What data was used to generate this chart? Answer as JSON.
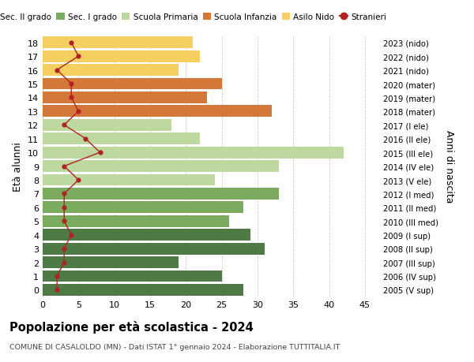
{
  "ages": [
    18,
    17,
    16,
    15,
    14,
    13,
    12,
    11,
    10,
    9,
    8,
    7,
    6,
    5,
    4,
    3,
    2,
    1,
    0
  ],
  "years": [
    "2005 (V sup)",
    "2006 (IV sup)",
    "2007 (III sup)",
    "2008 (II sup)",
    "2009 (I sup)",
    "2010 (III med)",
    "2011 (II med)",
    "2012 (I med)",
    "2013 (V ele)",
    "2014 (IV ele)",
    "2015 (III ele)",
    "2016 (II ele)",
    "2017 (I ele)",
    "2018 (mater)",
    "2019 (mater)",
    "2020 (mater)",
    "2021 (nido)",
    "2022 (nido)",
    "2023 (nido)"
  ],
  "bar_values": [
    28,
    25,
    19,
    31,
    29,
    26,
    28,
    33,
    24,
    33,
    42,
    22,
    18,
    32,
    23,
    25,
    19,
    22,
    21
  ],
  "bar_colors": [
    "#4d7a45",
    "#4d7a45",
    "#4d7a45",
    "#4d7a45",
    "#4d7a45",
    "#7aab5e",
    "#7aab5e",
    "#7aab5e",
    "#bdd9a0",
    "#bdd9a0",
    "#bdd9a0",
    "#bdd9a0",
    "#bdd9a0",
    "#d4783a",
    "#d4783a",
    "#d4783a",
    "#f5d060",
    "#f5d060",
    "#f5d060"
  ],
  "stranieri_values": [
    2,
    2,
    3,
    3,
    4,
    3,
    3,
    3,
    5,
    3,
    8,
    6,
    3,
    5,
    4,
    4,
    2,
    5,
    4
  ],
  "stranieri_color": "#b22222",
  "legend_labels": [
    "Sec. II grado",
    "Sec. I grado",
    "Scuola Primaria",
    "Scuola Infanzia",
    "Asilo Nido",
    "Stranieri"
  ],
  "legend_colors": [
    "#4d7a45",
    "#7aab5e",
    "#bdd9a0",
    "#d4783a",
    "#f5d060",
    "#b22222"
  ],
  "ylabel_left": "Età alunni",
  "ylabel_right": "Anni di nascita",
  "title": "Popolazione per età scolastica - 2024",
  "subtitle": "COMUNE DI CASALOLDO (MN) - Dati ISTAT 1° gennaio 2024 - Elaborazione TUTTITALIA.IT",
  "xlim": [
    0,
    47
  ],
  "xticks": [
    0,
    5,
    10,
    15,
    20,
    25,
    30,
    35,
    40,
    45
  ],
  "background_color": "#ffffff",
  "grid_color": "#cccccc"
}
